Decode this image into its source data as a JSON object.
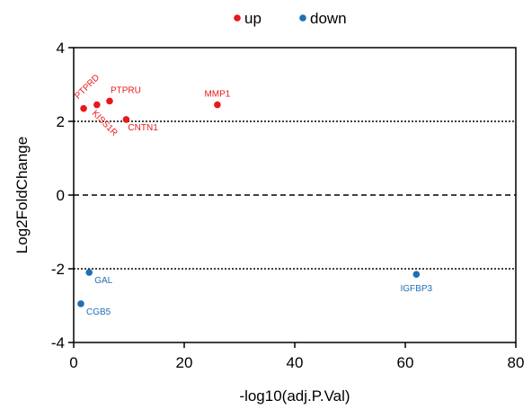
{
  "chart_data": {
    "type": "scatter",
    "xlabel": "-log10(adj.P.Val)",
    "ylabel": "Log2FoldChange",
    "xlim": [
      0,
      80
    ],
    "ylim": [
      -4,
      4
    ],
    "xticks": [
      "0",
      "20",
      "40",
      "60",
      "80"
    ],
    "yticks": [
      "4",
      "2",
      "0",
      "-2",
      "-4"
    ],
    "reference_lines": [
      {
        "y": 2,
        "style": "dotted"
      },
      {
        "y": 0,
        "style": "dashed"
      },
      {
        "y": -2,
        "style": "dotted"
      }
    ],
    "legend": {
      "placement": "top-center",
      "entries": [
        {
          "label": "up",
          "color": "#e8191c"
        },
        {
          "label": "down",
          "color": "#1f6fb4"
        }
      ]
    },
    "series": [
      {
        "name": "up",
        "color": "#e8191c",
        "points": [
          {
            "label": "PTPRD",
            "x": 1.8,
            "y": 2.35
          },
          {
            "label": "KISS1R",
            "x": 4.2,
            "y": 2.45
          },
          {
            "label": "PTPRU",
            "x": 6.5,
            "y": 2.55
          },
          {
            "label": "CNTN1",
            "x": 9.5,
            "y": 2.05
          },
          {
            "label": "MMP1",
            "x": 26.0,
            "y": 2.45
          }
        ]
      },
      {
        "name": "down",
        "color": "#1f6fb4",
        "points": [
          {
            "label": "GAL",
            "x": 2.8,
            "y": -2.1
          },
          {
            "label": "CGB5",
            "x": 1.3,
            "y": -2.95
          },
          {
            "label": "IGFBP3",
            "x": 62.0,
            "y": -2.15
          }
        ]
      }
    ]
  }
}
